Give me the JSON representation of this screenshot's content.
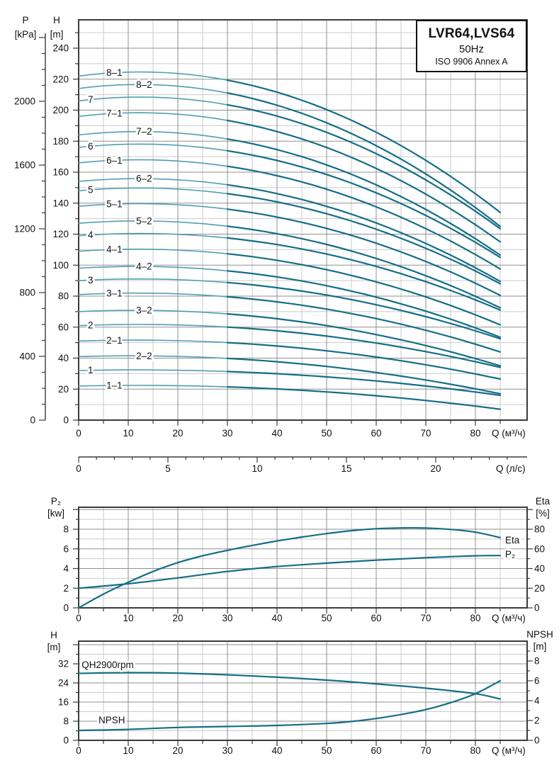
{
  "title_box": {
    "model": "LVR64,LVS64",
    "frequency": "50Hz",
    "standard": "ISO 9906 Annex A"
  },
  "colors": {
    "curve_light": "#4f9fb0",
    "curve_dark": "#146e88",
    "grid_light": "#cbcbcb",
    "grid_dark": "#8f8f8f",
    "frame": "#3b3b3b",
    "text": "#111111"
  },
  "chart_data": [
    {
      "name": "head-capacity-chart",
      "type": "line",
      "x_axis": {
        "unit_label": "Q (м³/ч)",
        "ticks": [
          0,
          10,
          20,
          30,
          40,
          50,
          60,
          70,
          80
        ],
        "minor_step": 5,
        "major_step": 10,
        "grid_max": 85,
        "tick_max": 85
      },
      "x_axis_secondary": {
        "unit_label": "Q (л/с)",
        "ticks": [
          0,
          5,
          10,
          15,
          20
        ],
        "minor_step": 1,
        "major_step": 5,
        "tick_max": 24
      },
      "y_axis_head": {
        "title": [
          "H",
          "[m]"
        ],
        "ticks": [
          0,
          20,
          40,
          60,
          80,
          100,
          120,
          140,
          160,
          180,
          200,
          220,
          240
        ],
        "minor_step": 10,
        "major_step": 20,
        "grid_max": 250
      },
      "y_axis_pressure": {
        "title": [
          "P",
          "[kPa]"
        ],
        "ticks": [
          0,
          400,
          800,
          1200,
          1600,
          2000
        ],
        "minor_step": 100,
        "major_step": 400,
        "tick_max": 2400
      },
      "q_end": 85,
      "q_peak": 12,
      "curves": [
        {
          "label": "8–1",
          "h0": 222,
          "hend": 134,
          "label_q": 7.2
        },
        {
          "label": "8–2",
          "h0": 214,
          "hend": 125,
          "label_q": 13.2
        },
        {
          "label": "7",
          "h0": 206,
          "hend": 123.5,
          "label_q": 2.4
        },
        {
          "label": "7–1",
          "h0": 196,
          "hend": 115,
          "label_q": 7.2
        },
        {
          "label": "7–2",
          "h0": 184,
          "hend": 106.5,
          "label_q": 13.2
        },
        {
          "label": "6",
          "h0": 176,
          "hend": 105,
          "label_q": 2.4
        },
        {
          "label": "6–1",
          "h0": 166,
          "hend": 97.5,
          "label_q": 7.2
        },
        {
          "label": "6–2",
          "h0": 154,
          "hend": 89.5,
          "label_q": 13.2
        },
        {
          "label": "5",
          "h0": 148,
          "hend": 88,
          "label_q": 2.4
        },
        {
          "label": "5–1",
          "h0": 138,
          "hend": 80.5,
          "label_q": 7.2
        },
        {
          "label": "5–2",
          "h0": 127,
          "hend": 72.5,
          "label_q": 13.2
        },
        {
          "label": "4",
          "h0": 119,
          "hend": 71,
          "label_q": 2.4
        },
        {
          "label": "4–1",
          "h0": 109,
          "hend": 61.5,
          "label_q": 7.2
        },
        {
          "label": "4–2",
          "h0": 98,
          "hend": 53.5,
          "label_q": 13.2
        },
        {
          "label": "3",
          "h0": 90,
          "hend": 52.5,
          "label_q": 2.4
        },
        {
          "label": "3–1",
          "h0": 81,
          "hend": 44,
          "label_q": 7.2
        },
        {
          "label": "3–2",
          "h0": 70,
          "hend": 35,
          "label_q": 13.2
        },
        {
          "label": "2",
          "h0": 61,
          "hend": 34,
          "label_q": 2.4
        },
        {
          "label": "2–1",
          "h0": 51,
          "hend": 26.5,
          "label_q": 7.2
        },
        {
          "label": "2–2",
          "h0": 41,
          "hend": 17,
          "label_q": 13.2
        },
        {
          "label": "1",
          "h0": 32,
          "hend": 16,
          "label_q": 2.4
        },
        {
          "label": "1–1",
          "h0": 22,
          "hend": 7,
          "label_q": 7.2
        }
      ]
    },
    {
      "name": "power-efficiency-chart",
      "type": "line",
      "x_axis": {
        "unit_label": "Q (м³/ч)",
        "ticks": [
          0,
          10,
          20,
          30,
          40,
          50,
          60,
          70,
          80
        ],
        "minor_step": 5,
        "major_step": 10,
        "grid_max": 85,
        "tick_max": 85
      },
      "y_axis_power": {
        "title": [
          "P₂",
          "[kw]"
        ],
        "ticks": [
          0,
          2,
          4,
          6,
          8
        ],
        "minor_step": 1,
        "major_step": 2,
        "grid_max": 10
      },
      "y_axis_eta": {
        "title": [
          "Eta",
          "[%]"
        ],
        "ticks": [
          0,
          20,
          40,
          60,
          80
        ],
        "minor_step": 10,
        "major_step": 20,
        "grid_max": 100
      },
      "series": [
        {
          "name": "Eta",
          "axis": "eta",
          "label": "Eta",
          "label_pos": [
            86,
            69
          ],
          "points": [
            [
              0,
              0
            ],
            [
              5,
              14
            ],
            [
              10,
              26
            ],
            [
              15,
              37
            ],
            [
              20,
              46
            ],
            [
              25,
              53
            ],
            [
              30,
              58.5
            ],
            [
              35,
              63.5
            ],
            [
              40,
              68
            ],
            [
              45,
              72
            ],
            [
              50,
              75.5
            ],
            [
              55,
              78.5
            ],
            [
              60,
              80.5
            ],
            [
              65,
              81.3
            ],
            [
              70,
              81.2
            ],
            [
              75,
              79.8
            ],
            [
              80,
              77
            ],
            [
              85,
              71.5
            ]
          ]
        },
        {
          "name": "P2",
          "axis": "power",
          "label": "P₂",
          "label_pos": [
            86,
            5.45
          ],
          "points": [
            [
              0,
              2.0
            ],
            [
              10,
              2.45
            ],
            [
              20,
              3.05
            ],
            [
              30,
              3.7
            ],
            [
              40,
              4.2
            ],
            [
              50,
              4.55
            ],
            [
              60,
              4.85
            ],
            [
              70,
              5.1
            ],
            [
              80,
              5.3
            ],
            [
              85,
              5.32
            ]
          ]
        }
      ]
    },
    {
      "name": "qh-npsh-chart",
      "type": "line",
      "x_axis": {
        "unit_label": "Q (м³/ч)",
        "ticks": [
          0,
          10,
          20,
          30,
          40,
          50,
          60,
          70,
          80
        ],
        "minor_step": 5,
        "major_step": 10,
        "grid_max": 85,
        "tick_max": 85
      },
      "y_axis_h": {
        "title": [
          "H",
          "[m]"
        ],
        "ticks": [
          0,
          8,
          16,
          24,
          32
        ],
        "minor_step": 4,
        "major_step": 8,
        "grid_max": 40
      },
      "y_axis_npsh": {
        "title": [
          "NPSH",
          "[m]"
        ],
        "ticks": [
          0,
          2,
          4,
          6,
          8
        ],
        "minor_step": 1,
        "major_step": 2,
        "grid_max": 9
      },
      "series": [
        {
          "name": "QH2900rpm",
          "axis": "head",
          "label": "QH2900rpm",
          "label_pos": [
            0.6,
            31.5
          ],
          "points": [
            [
              0,
              28
            ],
            [
              10,
              28.3
            ],
            [
              20,
              28.1
            ],
            [
              30,
              27.4
            ],
            [
              40,
              26.4
            ],
            [
              50,
              25.2
            ],
            [
              60,
              23.6
            ],
            [
              70,
              21.8
            ],
            [
              80,
              19.5
            ],
            [
              85,
              17.3
            ]
          ]
        },
        {
          "name": "NPSH",
          "axis": "npsh",
          "label": "NPSH",
          "label_pos": [
            4,
            2.05
          ],
          "points": [
            [
              0,
              1.0
            ],
            [
              10,
              1.1
            ],
            [
              20,
              1.3
            ],
            [
              30,
              1.4
            ],
            [
              40,
              1.5
            ],
            [
              50,
              1.7
            ],
            [
              55,
              1.9
            ],
            [
              60,
              2.2
            ],
            [
              65,
              2.6
            ],
            [
              70,
              3.1
            ],
            [
              75,
              3.8
            ],
            [
              80,
              4.7
            ],
            [
              85,
              6.0
            ]
          ]
        }
      ]
    }
  ]
}
